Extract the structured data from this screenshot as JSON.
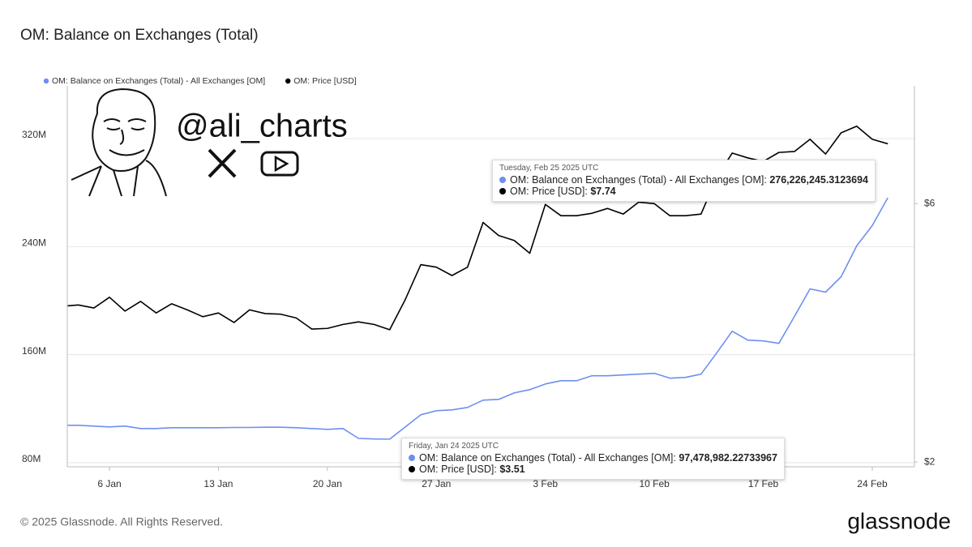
{
  "chart_data": {
    "type": "line",
    "title": "OM: Balance on Exchanges (Total)",
    "footer": "© 2025 Glassnode. All Rights Reserved.",
    "brand": "glassnode",
    "watermark": "@ali_charts",
    "x": [
      "2025-01-03",
      "2025-01-04",
      "2025-01-05",
      "2025-01-06",
      "2025-01-07",
      "2025-01-08",
      "2025-01-09",
      "2025-01-10",
      "2025-01-11",
      "2025-01-12",
      "2025-01-13",
      "2025-01-14",
      "2025-01-15",
      "2025-01-16",
      "2025-01-17",
      "2025-01-18",
      "2025-01-19",
      "2025-01-20",
      "2025-01-21",
      "2025-01-22",
      "2025-01-23",
      "2025-01-24",
      "2025-01-25",
      "2025-01-26",
      "2025-01-27",
      "2025-01-28",
      "2025-01-29",
      "2025-01-30",
      "2025-01-31",
      "2025-02-01",
      "2025-02-02",
      "2025-02-03",
      "2025-02-04",
      "2025-02-05",
      "2025-02-06",
      "2025-02-07",
      "2025-02-08",
      "2025-02-09",
      "2025-02-10",
      "2025-02-11",
      "2025-02-12",
      "2025-02-13",
      "2025-02-14",
      "2025-02-15",
      "2025-02-16",
      "2025-02-17",
      "2025-02-18",
      "2025-02-19",
      "2025-02-20",
      "2025-02-21",
      "2025-02-22",
      "2025-02-23",
      "2025-02-24",
      "2025-02-25"
    ],
    "xlim": [
      "2025-01-03T07:00Z",
      "2025-02-26T17:00Z"
    ],
    "xticks": [
      {
        "value": "2025-01-06",
        "label": "6 Jan"
      },
      {
        "value": "2025-01-13",
        "label": "13 Jan"
      },
      {
        "value": "2025-01-20",
        "label": "20 Jan"
      },
      {
        "value": "2025-01-27",
        "label": "27 Jan"
      },
      {
        "value": "2025-02-03",
        "label": "3 Feb"
      },
      {
        "value": "2025-02-10",
        "label": "10 Feb"
      },
      {
        "value": "2025-02-17",
        "label": "17 Feb"
      },
      {
        "value": "2025-02-24",
        "label": "24 Feb"
      }
    ],
    "ylim": [
      77000000,
      359000000
    ],
    "yticks": [
      {
        "value": 80000000,
        "label": "80M"
      },
      {
        "value": 160000000,
        "label": "160M"
      },
      {
        "value": 240000000,
        "label": "240M"
      },
      {
        "value": 320000000,
        "label": "320M"
      }
    ],
    "y2lim": [
      1.96,
      9.9
    ],
    "y2log": true,
    "y2ticks": [
      {
        "value": 2,
        "label": "$2"
      },
      {
        "value": 6,
        "label": "$6"
      }
    ],
    "grid": true,
    "series": [
      {
        "name": "OM: Balance on Exchanges (Total) - All Exchanges [OM]",
        "color": "#6f8ff0",
        "values": [
          107700000,
          107700000,
          107100000,
          106500000,
          107100000,
          105300000,
          105300000,
          105900000,
          105900000,
          105900000,
          105900000,
          106100000,
          106100000,
          106300000,
          106300000,
          105900000,
          105300000,
          104700000,
          105300000,
          98000000,
          97600000,
          97478982.22733967,
          106500000,
          115500000,
          118500000,
          119100000,
          120900000,
          126300000,
          126900000,
          131700000,
          134100000,
          138300000,
          140700000,
          140700000,
          144400000,
          144400000,
          145000000,
          145600000,
          146200000,
          142600000,
          143200000,
          145600000,
          161200000,
          177400000,
          170800000,
          170200000,
          168400000,
          188300000,
          208700000,
          206300000,
          217700000,
          240600000,
          255600000,
          276226245.3123694
        ],
        "value_labels": [
          null,
          null,
          null,
          null,
          null,
          null,
          null,
          null,
          null,
          null,
          null,
          null,
          null,
          null,
          null,
          null,
          null,
          null,
          null,
          null,
          null,
          "97,478,982.22733967",
          null,
          null,
          null,
          null,
          null,
          null,
          null,
          null,
          null,
          null,
          null,
          null,
          null,
          null,
          null,
          null,
          null,
          null,
          null,
          null,
          null,
          null,
          null,
          null,
          null,
          null,
          null,
          null,
          null,
          null,
          null,
          "276,226,245.3123694"
        ]
      },
      {
        "name": "OM: Price [USD]",
        "color": "#000000",
        "axis": "y2",
        "values": [
          3.88,
          3.9,
          3.85,
          4.03,
          3.8,
          3.96,
          3.77,
          3.92,
          3.82,
          3.71,
          3.77,
          3.62,
          3.82,
          3.76,
          3.75,
          3.69,
          3.52,
          3.53,
          3.59,
          3.63,
          3.59,
          3.51,
          3.99,
          4.63,
          4.58,
          4.42,
          4.58,
          5.54,
          5.24,
          5.13,
          4.86,
          5.98,
          5.7,
          5.7,
          5.76,
          5.88,
          5.74,
          6.04,
          6.0,
          5.7,
          5.7,
          5.74,
          6.7,
          7.44,
          7.29,
          7.18,
          7.46,
          7.49,
          7.89,
          7.41,
          8.11,
          8.34,
          7.89,
          7.74
        ],
        "value_labels": [
          null,
          null,
          null,
          null,
          null,
          null,
          null,
          null,
          null,
          null,
          null,
          null,
          null,
          null,
          null,
          null,
          null,
          null,
          null,
          null,
          null,
          "$3.51",
          null,
          null,
          null,
          null,
          null,
          null,
          null,
          null,
          null,
          null,
          null,
          null,
          null,
          null,
          null,
          null,
          null,
          null,
          null,
          null,
          null,
          null,
          null,
          null,
          null,
          null,
          null,
          null,
          null,
          null,
          null,
          "$7.74"
        ]
      }
    ],
    "tooltips": [
      {
        "x": "2025-01-24",
        "date": "Friday, Jan 24 2025 UTC"
      },
      {
        "x": "2025-02-25",
        "date": "Tuesday, Feb 25 2025 UTC"
      }
    ]
  }
}
